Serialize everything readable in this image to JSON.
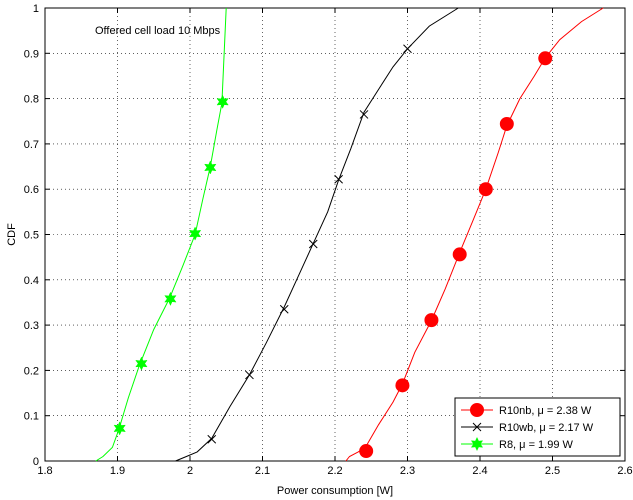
{
  "chart_data": {
    "type": "line",
    "title": "",
    "annotation": "Offered cell load 10 Mbps",
    "xlabel": "Power consumption [W]",
    "ylabel": "CDF",
    "xlim": [
      1.8,
      2.6
    ],
    "ylim": [
      0,
      1
    ],
    "xticks": [
      "1.8",
      "1.9",
      "2",
      "2.1",
      "2.2",
      "2.3",
      "2.4",
      "2.5",
      "2.6"
    ],
    "yticks": [
      "0",
      "0.1",
      "0.2",
      "0.3",
      "0.4",
      "0.5",
      "0.6",
      "0.7",
      "0.8",
      "0.9",
      "1"
    ],
    "grid": "dotted",
    "legend_position": "bottom-right",
    "series": [
      {
        "name": "R10nb, μ = 2.38 W",
        "color": "#ff0000",
        "marker": "filled-circle",
        "x": [
          2.215,
          2.22,
          2.232,
          2.242,
          2.26,
          2.28,
          2.293,
          2.31,
          2.333,
          2.352,
          2.372,
          2.39,
          2.408,
          2.425,
          2.437,
          2.455,
          2.475,
          2.49,
          2.51,
          2.54,
          2.57
        ],
        "y": [
          0,
          0.01,
          0.02,
          0.03,
          0.08,
          0.13,
          0.17,
          0.24,
          0.31,
          0.38,
          0.46,
          0.53,
          0.6,
          0.68,
          0.74,
          0.8,
          0.85,
          0.89,
          0.93,
          0.97,
          1.0
        ],
        "markers": [
          [
            2.243,
            0.022
          ],
          [
            2.293,
            0.167
          ],
          [
            2.333,
            0.311
          ],
          [
            2.372,
            0.456
          ],
          [
            2.408,
            0.6
          ],
          [
            2.437,
            0.744
          ],
          [
            2.49,
            0.889
          ]
        ]
      },
      {
        "name": "R10wb, μ = 2.17 W",
        "color": "#000000",
        "marker": "x",
        "x": [
          1.98,
          1.995,
          2.01,
          2.03,
          2.055,
          2.082,
          2.105,
          2.13,
          2.15,
          2.17,
          2.19,
          2.205,
          2.222,
          2.24,
          2.26,
          2.28,
          2.3,
          2.33,
          2.37
        ],
        "y": [
          0,
          0.01,
          0.02,
          0.05,
          0.12,
          0.19,
          0.26,
          0.34,
          0.41,
          0.48,
          0.55,
          0.62,
          0.69,
          0.77,
          0.82,
          0.87,
          0.91,
          0.96,
          1.0
        ],
        "markers": [
          [
            2.03,
            0.048
          ],
          [
            2.082,
            0.19
          ],
          [
            2.13,
            0.335
          ],
          [
            2.17,
            0.479
          ],
          [
            2.205,
            0.622
          ],
          [
            2.24,
            0.765
          ],
          [
            2.3,
            0.91
          ]
        ]
      },
      {
        "name": "R8, μ = 1.99 W",
        "color": "#00ff00",
        "marker": "hexagram",
        "x": [
          1.87,
          1.88,
          1.893,
          1.902,
          1.915,
          1.93,
          1.95,
          1.972,
          1.99,
          2.007,
          2.018,
          2.028,
          2.037,
          2.044,
          2.05
        ],
        "y": [
          0,
          0.01,
          0.03,
          0.07,
          0.14,
          0.21,
          0.29,
          0.36,
          0.43,
          0.5,
          0.58,
          0.65,
          0.73,
          0.79,
          1.0
        ],
        "markers": [
          [
            1.903,
            0.072
          ],
          [
            1.933,
            0.215
          ],
          [
            1.973,
            0.358
          ],
          [
            2.007,
            0.502
          ],
          [
            2.028,
            0.648
          ],
          [
            2.045,
            0.793
          ]
        ]
      }
    ]
  }
}
